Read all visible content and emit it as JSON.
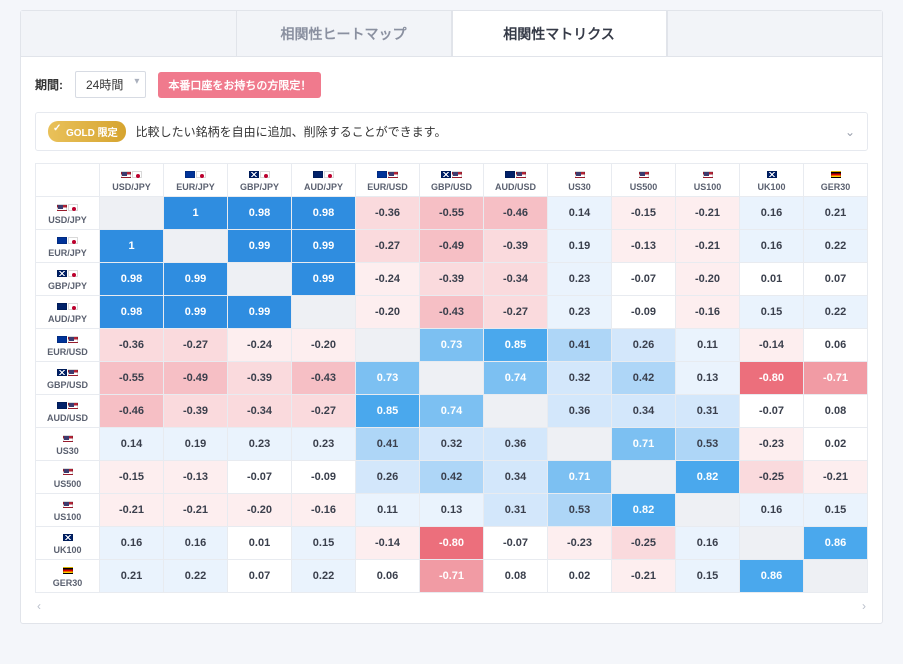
{
  "tabs": {
    "heatmap": "相関性ヒートマップ",
    "matrix": "相関性マトリクス"
  },
  "controls": {
    "period_label": "期間:",
    "period_value": "24時間",
    "promo": "本番口座をお持ちの方限定！"
  },
  "gold": {
    "badge": "GOLD 限定",
    "text": "比較したい銘柄を自由に追加、削除することができます。"
  },
  "scroll": {
    "left": "‹",
    "right": "›"
  },
  "instruments": [
    {
      "code": "USD/JPY",
      "flags": [
        "us",
        "jp"
      ]
    },
    {
      "code": "EUR/JPY",
      "flags": [
        "eu",
        "jp"
      ]
    },
    {
      "code": "GBP/JPY",
      "flags": [
        "gb",
        "jp"
      ]
    },
    {
      "code": "AUD/JPY",
      "flags": [
        "au",
        "jp"
      ]
    },
    {
      "code": "EUR/USD",
      "flags": [
        "eu",
        "us"
      ]
    },
    {
      "code": "GBP/USD",
      "flags": [
        "gb",
        "us"
      ]
    },
    {
      "code": "AUD/USD",
      "flags": [
        "au",
        "us"
      ]
    },
    {
      "code": "US30",
      "flags": [
        "us"
      ]
    },
    {
      "code": "US500",
      "flags": [
        "us"
      ]
    },
    {
      "code": "US100",
      "flags": [
        "us"
      ]
    },
    {
      "code": "UK100",
      "flags": [
        "gb"
      ]
    },
    {
      "code": "GER30",
      "flags": [
        "de"
      ]
    }
  ],
  "matrix": [
    [
      null,
      1.0,
      0.98,
      0.98,
      -0.36,
      -0.55,
      -0.46,
      0.14,
      -0.15,
      -0.21,
      0.16,
      0.21
    ],
    [
      1.0,
      null,
      0.99,
      0.99,
      -0.27,
      -0.49,
      -0.39,
      0.19,
      -0.13,
      -0.21,
      0.16,
      0.22
    ],
    [
      0.98,
      0.99,
      null,
      0.99,
      -0.24,
      -0.39,
      -0.34,
      0.23,
      -0.07,
      -0.2,
      0.01,
      0.07
    ],
    [
      0.98,
      0.99,
      0.99,
      null,
      -0.2,
      -0.43,
      -0.27,
      0.23,
      -0.09,
      -0.16,
      0.15,
      0.22
    ],
    [
      -0.36,
      -0.27,
      -0.24,
      -0.2,
      null,
      0.73,
      0.85,
      0.41,
      0.26,
      0.11,
      -0.14,
      0.06
    ],
    [
      -0.55,
      -0.49,
      -0.39,
      -0.43,
      0.73,
      null,
      0.74,
      0.32,
      0.42,
      0.13,
      -0.8,
      -0.71
    ],
    [
      -0.46,
      -0.39,
      -0.34,
      -0.27,
      0.85,
      0.74,
      null,
      0.36,
      0.34,
      0.31,
      -0.07,
      0.08
    ],
    [
      0.14,
      0.19,
      0.23,
      0.23,
      0.41,
      0.32,
      0.36,
      null,
      0.71,
      0.53,
      -0.23,
      0.02
    ],
    [
      -0.15,
      -0.13,
      -0.07,
      -0.09,
      0.26,
      0.42,
      0.34,
      0.71,
      null,
      0.82,
      -0.25,
      -0.21
    ],
    [
      -0.21,
      -0.21,
      -0.2,
      -0.16,
      0.11,
      0.13,
      0.31,
      0.53,
      0.82,
      null,
      0.16,
      0.15
    ],
    [
      0.16,
      0.16,
      0.01,
      0.15,
      -0.14,
      -0.8,
      -0.07,
      -0.23,
      -0.25,
      0.16,
      null,
      0.86
    ],
    [
      0.21,
      0.22,
      0.07,
      0.22,
      0.06,
      -0.71,
      0.08,
      0.02,
      -0.21,
      0.15,
      0.86,
      null
    ]
  ],
  "colors": {
    "pos": [
      "#ffffff",
      "#eaf3fd",
      "#d3e7fb",
      "#aed6f7",
      "#7cc0f2",
      "#4aa8ed",
      "#2f8de0"
    ],
    "neg": [
      "#ffffff",
      "#fdeeef",
      "#fadadd",
      "#f6bfc5",
      "#f19ba4",
      "#ec6f7c",
      "#e64a5b"
    ],
    "diag": "#eef0f4",
    "text_light": "#ffffff",
    "text_dark": "#3a3f4c"
  }
}
